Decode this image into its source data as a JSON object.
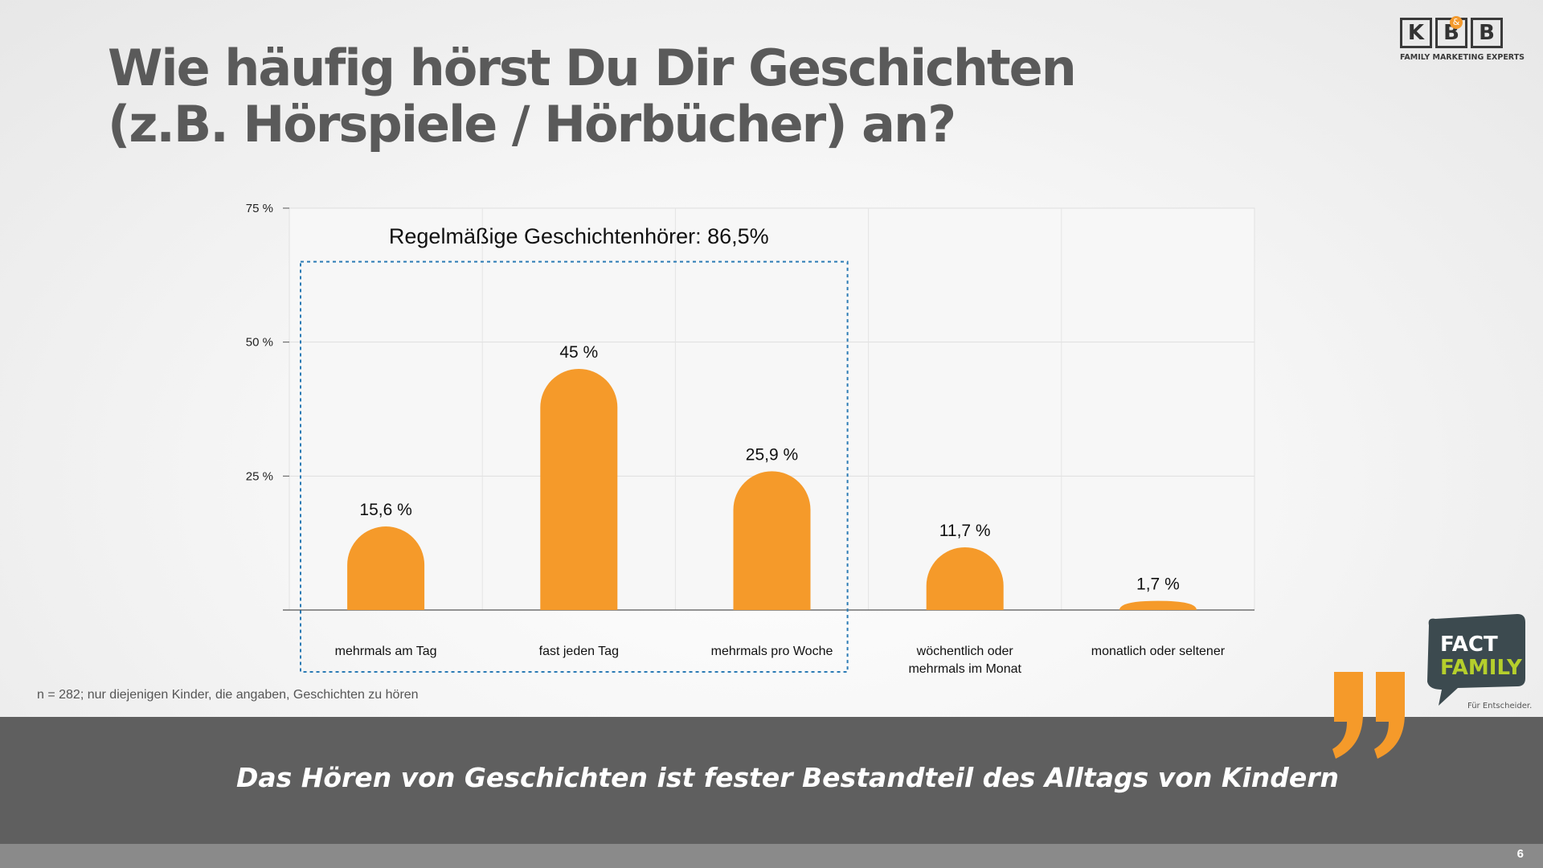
{
  "title": {
    "line1": "Wie häufig hörst Du Dir Geschichten",
    "line2": "(z.B. Hörspiele / Hörbücher) an?"
  },
  "logo": {
    "letters": [
      "K",
      "B",
      "B"
    ],
    "amp": "&",
    "tagline": "FAMILY MARKETING EXPERTS"
  },
  "chart_data": {
    "type": "bar",
    "categories": [
      [
        "mehrmals am Tag"
      ],
      [
        "fast jeden Tag"
      ],
      [
        "mehrmals pro Woche"
      ],
      [
        "wöchentlich oder",
        "mehrmals im Monat"
      ],
      [
        "monatlich oder seltener"
      ]
    ],
    "values": [
      15.6,
      45,
      25.9,
      11.7,
      1.7
    ],
    "value_labels": [
      "15,6 %",
      "45 %",
      "25,9 %",
      "11,7 %",
      "1,7 %"
    ],
    "ylim": [
      0,
      75
    ],
    "yticks": [
      0,
      25,
      50,
      75
    ],
    "ytick_labels": [
      "",
      "25 %",
      "50 %",
      "75 %"
    ],
    "grid": true,
    "bar_color": "#f59a2a",
    "annotation": {
      "text": "Regelmäßige Geschichtenhörer: 86,5%",
      "covers_categories": [
        0,
        1,
        2
      ],
      "border_color": "#2b7bb5"
    }
  },
  "note": "n = 282; nur diejenigen Kinder, die angaben, Geschichten zu hören",
  "statement": "Das Hören von Geschichten ist fester Bestandteil des Alltags von Kindern",
  "fact_family": {
    "line1": "FACT",
    "line2": "FAMILY",
    "tagline": "Für Entscheider."
  },
  "colors": {
    "accent": "#f59a2a",
    "title": "#5a5a5a",
    "band": "#5f5f5f",
    "fact_family_green": "#b5cf2c"
  },
  "page_number": "6"
}
